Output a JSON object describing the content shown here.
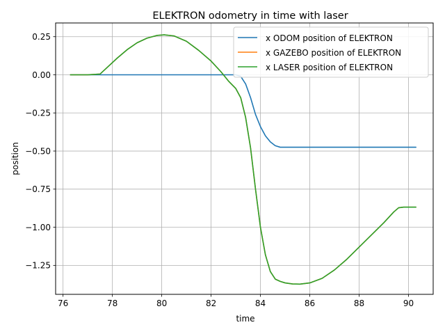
{
  "chart_data": {
    "type": "line",
    "title": "ELEKTRON odometry in time with laser",
    "xlabel": "time",
    "ylabel": "position",
    "xlim": [
      75.7,
      91.0
    ],
    "ylim": [
      -1.44,
      0.34
    ],
    "x_ticks": [
      76,
      78,
      80,
      82,
      84,
      86,
      88,
      90
    ],
    "y_ticks": [
      0.25,
      0.0,
      -0.25,
      -0.5,
      -0.75,
      -1.0,
      -1.25
    ],
    "x_tick_labels": [
      "76",
      "78",
      "80",
      "82",
      "84",
      "86",
      "88",
      "90"
    ],
    "y_tick_labels": [
      "0.25",
      "0.00",
      "−0.25",
      "−0.50",
      "−0.75",
      "−1.00",
      "−1.25"
    ],
    "grid": true,
    "legend_position": "top-right",
    "series": [
      {
        "name": "x ODOM position of ELEKTRON",
        "color": "#1f77b4",
        "points": [
          [
            76.3,
            0.0
          ],
          [
            77.5,
            0.0
          ],
          [
            79.0,
            0.0
          ],
          [
            81.0,
            0.0
          ],
          [
            82.8,
            0.0
          ],
          [
            83.0,
            0.0
          ],
          [
            83.2,
            -0.01
          ],
          [
            83.4,
            -0.06
          ],
          [
            83.6,
            -0.15
          ],
          [
            83.8,
            -0.26
          ],
          [
            84.0,
            -0.34
          ],
          [
            84.2,
            -0.4
          ],
          [
            84.4,
            -0.44
          ],
          [
            84.6,
            -0.465
          ],
          [
            84.8,
            -0.475
          ],
          [
            85.0,
            -0.475
          ],
          [
            86.0,
            -0.475
          ],
          [
            88.0,
            -0.475
          ],
          [
            90.3,
            -0.475
          ]
        ]
      },
      {
        "name": "x GAZEBO position of ELEKTRON",
        "color": "#ff7f0e",
        "points": [
          [
            76.3,
            0.0
          ],
          [
            77.0,
            0.0
          ],
          [
            77.5,
            0.005
          ],
          [
            77.8,
            0.05
          ],
          [
            78.2,
            0.11
          ],
          [
            78.6,
            0.165
          ],
          [
            79.0,
            0.21
          ],
          [
            79.4,
            0.24
          ],
          [
            79.8,
            0.258
          ],
          [
            80.1,
            0.262
          ],
          [
            80.5,
            0.255
          ],
          [
            81.0,
            0.22
          ],
          [
            81.5,
            0.16
          ],
          [
            82.0,
            0.09
          ],
          [
            82.4,
            0.02
          ],
          [
            82.7,
            -0.04
          ],
          [
            83.0,
            -0.09
          ],
          [
            83.2,
            -0.15
          ],
          [
            83.4,
            -0.28
          ],
          [
            83.6,
            -0.48
          ],
          [
            83.8,
            -0.75
          ],
          [
            84.0,
            -1.0
          ],
          [
            84.2,
            -1.18
          ],
          [
            84.4,
            -1.29
          ],
          [
            84.6,
            -1.34
          ],
          [
            84.8,
            -1.355
          ],
          [
            85.0,
            -1.365
          ],
          [
            85.3,
            -1.372
          ],
          [
            85.6,
            -1.373
          ],
          [
            86.0,
            -1.365
          ],
          [
            86.5,
            -1.335
          ],
          [
            87.0,
            -1.28
          ],
          [
            87.5,
            -1.21
          ],
          [
            88.0,
            -1.13
          ],
          [
            88.5,
            -1.05
          ],
          [
            89.0,
            -0.97
          ],
          [
            89.4,
            -0.9
          ],
          [
            89.6,
            -0.872
          ],
          [
            89.8,
            -0.868
          ],
          [
            90.3,
            -0.868
          ]
        ]
      },
      {
        "name": "x LASER position of ELEKTRON",
        "color": "#2ca02c",
        "points": [
          [
            76.3,
            0.0
          ],
          [
            77.0,
            0.0
          ],
          [
            77.5,
            0.005
          ],
          [
            77.8,
            0.05
          ],
          [
            78.2,
            0.11
          ],
          [
            78.6,
            0.165
          ],
          [
            79.0,
            0.21
          ],
          [
            79.4,
            0.24
          ],
          [
            79.8,
            0.258
          ],
          [
            80.1,
            0.262
          ],
          [
            80.5,
            0.255
          ],
          [
            81.0,
            0.22
          ],
          [
            81.5,
            0.16
          ],
          [
            82.0,
            0.09
          ],
          [
            82.4,
            0.02
          ],
          [
            82.7,
            -0.04
          ],
          [
            83.0,
            -0.09
          ],
          [
            83.2,
            -0.15
          ],
          [
            83.4,
            -0.28
          ],
          [
            83.6,
            -0.48
          ],
          [
            83.8,
            -0.75
          ],
          [
            84.0,
            -1.0
          ],
          [
            84.2,
            -1.18
          ],
          [
            84.4,
            -1.29
          ],
          [
            84.6,
            -1.34
          ],
          [
            84.8,
            -1.355
          ],
          [
            85.0,
            -1.365
          ],
          [
            85.3,
            -1.372
          ],
          [
            85.6,
            -1.373
          ],
          [
            86.0,
            -1.365
          ],
          [
            86.5,
            -1.335
          ],
          [
            87.0,
            -1.28
          ],
          [
            87.5,
            -1.21
          ],
          [
            88.0,
            -1.13
          ],
          [
            88.5,
            -1.05
          ],
          [
            89.0,
            -0.97
          ],
          [
            89.4,
            -0.9
          ],
          [
            89.6,
            -0.872
          ],
          [
            89.8,
            -0.868
          ],
          [
            90.3,
            -0.868
          ]
        ]
      }
    ]
  }
}
